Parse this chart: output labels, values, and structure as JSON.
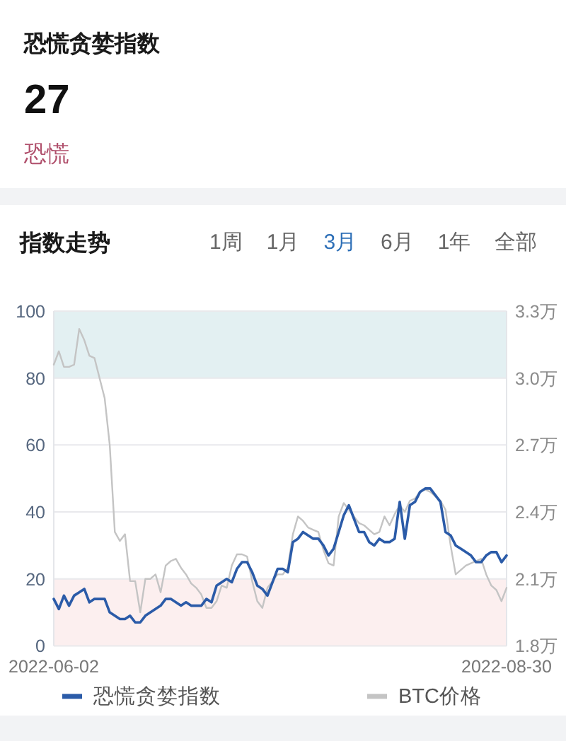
{
  "chart_data": [
    {
      "type": "other",
      "title": "恐慌贪婪指数",
      "annotations": [
        "27",
        "恐慌"
      ]
    },
    {
      "type": "line",
      "title": "指数走势",
      "annotations": [
        "1周",
        "1月",
        "3月",
        "6月",
        "1年",
        "全部"
      ],
      "x": [
        "2022-06-02",
        "2022-06-03",
        "2022-06-04",
        "2022-06-05",
        "2022-06-06",
        "2022-06-07",
        "2022-06-08",
        "2022-06-09",
        "2022-06-10",
        "2022-06-11",
        "2022-06-12",
        "2022-06-13",
        "2022-06-14",
        "2022-06-15",
        "2022-06-16",
        "2022-06-17",
        "2022-06-18",
        "2022-06-19",
        "2022-06-20",
        "2022-06-21",
        "2022-06-22",
        "2022-06-23",
        "2022-06-24",
        "2022-06-25",
        "2022-06-26",
        "2022-06-27",
        "2022-06-28",
        "2022-06-29",
        "2022-06-30",
        "2022-07-01",
        "2022-07-02",
        "2022-07-03",
        "2022-07-04",
        "2022-07-05",
        "2022-07-06",
        "2022-07-07",
        "2022-07-08",
        "2022-07-09",
        "2022-07-10",
        "2022-07-11",
        "2022-07-12",
        "2022-07-13",
        "2022-07-14",
        "2022-07-15",
        "2022-07-16",
        "2022-07-17",
        "2022-07-18",
        "2022-07-19",
        "2022-07-20",
        "2022-07-21",
        "2022-07-22",
        "2022-07-23",
        "2022-07-24",
        "2022-07-25",
        "2022-07-26",
        "2022-07-27",
        "2022-07-28",
        "2022-07-29",
        "2022-07-30",
        "2022-07-31",
        "2022-08-01",
        "2022-08-02",
        "2022-08-03",
        "2022-08-04",
        "2022-08-05",
        "2022-08-06",
        "2022-08-07",
        "2022-08-08",
        "2022-08-09",
        "2022-08-10",
        "2022-08-11",
        "2022-08-12",
        "2022-08-13",
        "2022-08-14",
        "2022-08-15",
        "2022-08-16",
        "2022-08-17",
        "2022-08-18",
        "2022-08-19",
        "2022-08-20",
        "2022-08-21",
        "2022-08-22",
        "2022-08-23",
        "2022-08-24",
        "2022-08-25",
        "2022-08-26",
        "2022-08-27",
        "2022-08-28",
        "2022-08-29",
        "2022-08-30"
      ],
      "series": [
        {
          "name": "恐慌贪婪指数",
          "color": "#2b5ba8",
          "values": [
            14,
            11,
            15,
            12,
            15,
            16,
            17,
            13,
            14,
            14,
            14,
            10,
            9,
            8,
            8,
            9,
            7,
            7,
            9,
            10,
            11,
            12,
            14,
            14,
            13,
            12,
            13,
            12,
            12,
            12,
            14,
            13,
            18,
            19,
            20,
            19,
            23,
            25,
            25,
            22,
            18,
            17,
            15,
            19,
            23,
            23,
            22,
            31,
            32,
            34,
            33,
            32,
            32,
            30,
            27,
            29,
            34,
            39,
            42,
            38,
            34,
            34,
            31,
            30,
            32,
            31,
            31,
            32,
            43,
            32,
            42,
            43,
            46,
            47,
            47,
            45,
            43,
            34,
            33,
            30,
            29,
            28,
            27,
            25,
            25,
            27,
            28,
            28,
            25,
            27
          ]
        },
        {
          "name": "BTC价格",
          "color": "#c4c4c4",
          "axis": "y2",
          "values": [
            3.06,
            3.12,
            3.05,
            3.05,
            3.06,
            3.22,
            3.17,
            3.1,
            3.09,
            3.0,
            2.91,
            2.7,
            2.31,
            2.27,
            2.3,
            2.09,
            2.09,
            1.95,
            2.1,
            2.1,
            2.12,
            2.04,
            2.16,
            2.18,
            2.19,
            2.15,
            2.12,
            2.08,
            2.06,
            2.03,
            1.97,
            1.97,
            2.0,
            2.07,
            2.06,
            2.16,
            2.21,
            2.21,
            2.2,
            2.09,
            2.0,
            1.97,
            2.06,
            2.09,
            2.12,
            2.12,
            2.15,
            2.3,
            2.38,
            2.36,
            2.33,
            2.32,
            2.31,
            2.23,
            2.17,
            2.16,
            2.38,
            2.44,
            2.41,
            2.38,
            2.35,
            2.34,
            2.32,
            2.3,
            2.31,
            2.38,
            2.34,
            2.39,
            2.43,
            2.4,
            2.45,
            2.46,
            2.49,
            2.5,
            2.49,
            2.47,
            2.45,
            2.41,
            2.25,
            2.12,
            2.14,
            2.16,
            2.17,
            2.18,
            2.19,
            2.12,
            2.07,
            2.05,
            2.0,
            2.06
          ]
        }
      ],
      "xlim": [
        "2022-06-02",
        "2022-08-30"
      ],
      "xticks": [
        "2022-06-02",
        "2022-08-30"
      ],
      "ylim": [
        0,
        100
      ],
      "yticks": [
        0,
        20,
        40,
        60,
        80,
        100
      ],
      "y2lim": [
        1.8,
        3.3
      ],
      "y2ticks": [
        {
          "value": 1.8,
          "label": "1.8万"
        },
        {
          "value": 2.1,
          "label": "2.1万"
        },
        {
          "value": 2.4,
          "label": "2.4万"
        },
        {
          "value": 2.7,
          "label": "2.7万"
        },
        {
          "value": 3.0,
          "label": "3.0万"
        },
        {
          "value": 3.3,
          "label": "3.3万"
        }
      ],
      "bands": [
        {
          "axis": "y",
          "from": 0,
          "to": 20,
          "color": "#fcefef"
        },
        {
          "axis": "y",
          "from": 80,
          "to": 100,
          "color": "#e3f0f2"
        }
      ],
      "grid": "y",
      "legend": "bottom"
    }
  ]
}
